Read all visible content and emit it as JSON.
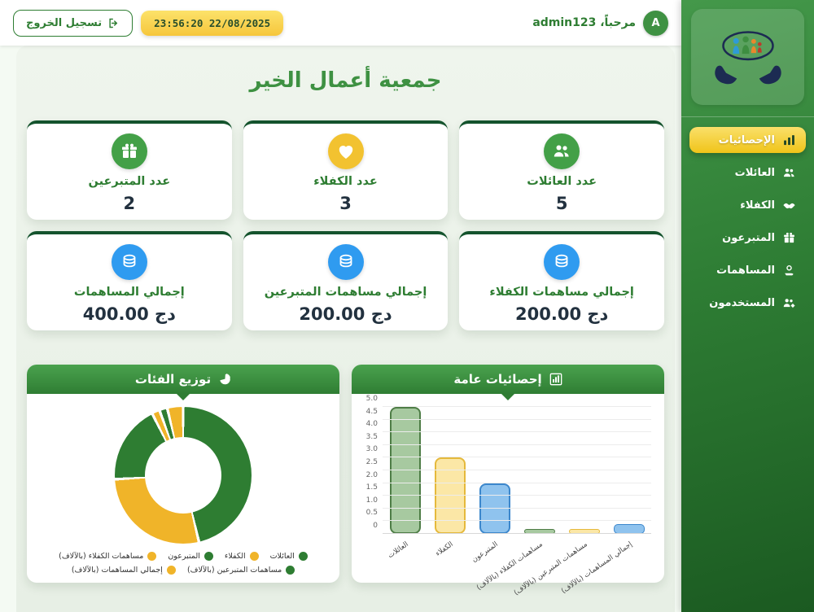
{
  "topbar": {
    "logout_label": "تسجيل الخروج",
    "datetime": "23:56:20 22/08/2025",
    "welcome": "مرحباً، admin123",
    "avatar_letter": "A"
  },
  "sidebar": {
    "items": [
      {
        "label": "الإحصائيات",
        "active": true
      },
      {
        "label": "العائلات",
        "active": false
      },
      {
        "label": "الكفلاء",
        "active": false
      },
      {
        "label": "المتبرعون",
        "active": false
      },
      {
        "label": "المساهمات",
        "active": false
      },
      {
        "label": "المستخدمون",
        "active": false
      }
    ]
  },
  "main": {
    "title": "جمعية أعمال الخير",
    "stat_cards": [
      {
        "label": "عدد العائلات",
        "value": "5"
      },
      {
        "label": "عدد الكفلاء",
        "value": "3"
      },
      {
        "label": "عدد المتبرعين",
        "value": "2"
      },
      {
        "label": "إجمالي مساهمات الكفلاء",
        "value": "200.00 دج"
      },
      {
        "label": "إجمالي مساهمات المتبرعين",
        "value": "200.00 دج"
      },
      {
        "label": "إجمالي المساهمات",
        "value": "400.00 دج"
      }
    ]
  },
  "colors": {
    "accent_green": "#2e7d32",
    "accent_yellow": "#f0c419",
    "accent_blue": "#2f9bf0",
    "sidebar_green_dark": "#1b5a21"
  },
  "chart_data": [
    {
      "type": "pie",
      "donut": true,
      "title": "توزيع الفئات",
      "labels": [
        "العائلات",
        "الكفلاء",
        "المتبرعون",
        "مساهمات الكفلاء (بالآلاف)",
        "مساهمات المتبرعين (بالآلاف)",
        "إجمالي المساهمات (بالآلاف)"
      ],
      "values": [
        5,
        3,
        2,
        0.2,
        0.2,
        0.4
      ],
      "colors": [
        "#2e7d32",
        "#f0b429",
        "#2e7d32",
        "#f0b429",
        "#2e7d32",
        "#f0b429"
      ],
      "legend_position": "bottom"
    },
    {
      "type": "bar",
      "title": "إحصائيات عامة",
      "categories": [
        "العائلات",
        "الكفلاء",
        "المتبرعون",
        "مساهمات الكفلاء (بالآلاف)",
        "مساهمات المتبرعين (بالآلاف)",
        "إجمالي المساهمات (بالآلاف)"
      ],
      "values": [
        5,
        3,
        2,
        0.2,
        0.2,
        0.4
      ],
      "bar_fill": [
        "#a7c9a0",
        "#fbe7a6",
        "#8fc3ee",
        "#a7c9a0",
        "#fbe7a6",
        "#8fc3ee"
      ],
      "bar_border": [
        "#4e7d46",
        "#e5b93c",
        "#3c87cc",
        "#4e7d46",
        "#e5b93c",
        "#3c87cc"
      ],
      "ylim": [
        0,
        5
      ],
      "ytick_step": 0.5,
      "grid": true,
      "legend": "none"
    }
  ]
}
